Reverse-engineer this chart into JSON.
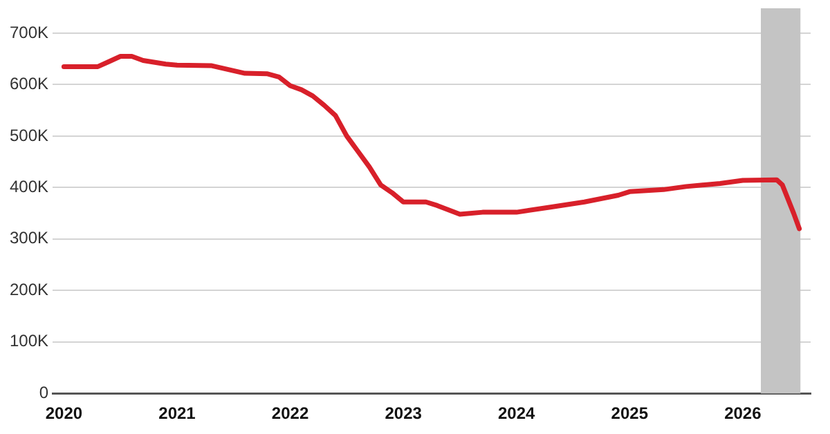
{
  "chart_data": {
    "type": "line",
    "series": [
      {
        "color": "#d8202a",
        "x": [
          2020.0,
          2020.3,
          2020.4,
          2020.5,
          2020.6,
          2020.7,
          2020.9,
          2021.0,
          2021.3,
          2021.4,
          2021.6,
          2021.8,
          2021.9,
          2022.0,
          2022.1,
          2022.2,
          2022.3,
          2022.4,
          2022.5,
          2022.6,
          2022.7,
          2022.8,
          2022.9,
          2023.0,
          2023.2,
          2023.3,
          2023.5,
          2023.7,
          2024.0,
          2024.3,
          2024.6,
          2024.9,
          2025.0,
          2025.3,
          2025.5,
          2025.8,
          2026.0,
          2026.3,
          2026.35,
          2026.45,
          2026.5
        ],
        "values": [
          635000,
          635000,
          645000,
          655000,
          655000,
          647000,
          640000,
          638000,
          637000,
          632000,
          622000,
          621000,
          615000,
          598000,
          590000,
          578000,
          560000,
          540000,
          500000,
          470000,
          440000,
          405000,
          390000,
          372000,
          372000,
          365000,
          348000,
          352000,
          352000,
          362000,
          372000,
          385000,
          392000,
          396000,
          402000,
          408000,
          414000,
          415000,
          405000,
          350000,
          320000
        ]
      }
    ],
    "xlim": [
      2019.9,
      2026.6
    ],
    "xticks": [
      2020,
      2021,
      2022,
      2023,
      2024,
      2025,
      2026
    ],
    "ylim": [
      0,
      700000
    ],
    "yticks": [
      0,
      {
        "value": 100000,
        "label": "100K"
      },
      {
        "value": 200000,
        "label": "200K"
      },
      {
        "value": 300000,
        "label": "300K"
      },
      {
        "value": 400000,
        "label": "400K"
      },
      {
        "value": 500000,
        "label": "500K"
      },
      {
        "value": 600000,
        "label": "600K"
      },
      {
        "value": 700000,
        "label": "700K"
      }
    ],
    "bands": [
      {
        "axis": "x",
        "from": 2026.16,
        "to": 2026.51,
        "color": "#c4c4c4"
      }
    ],
    "grid": "y",
    "legend": false,
    "marker": "none",
    "line_style": "solid"
  }
}
